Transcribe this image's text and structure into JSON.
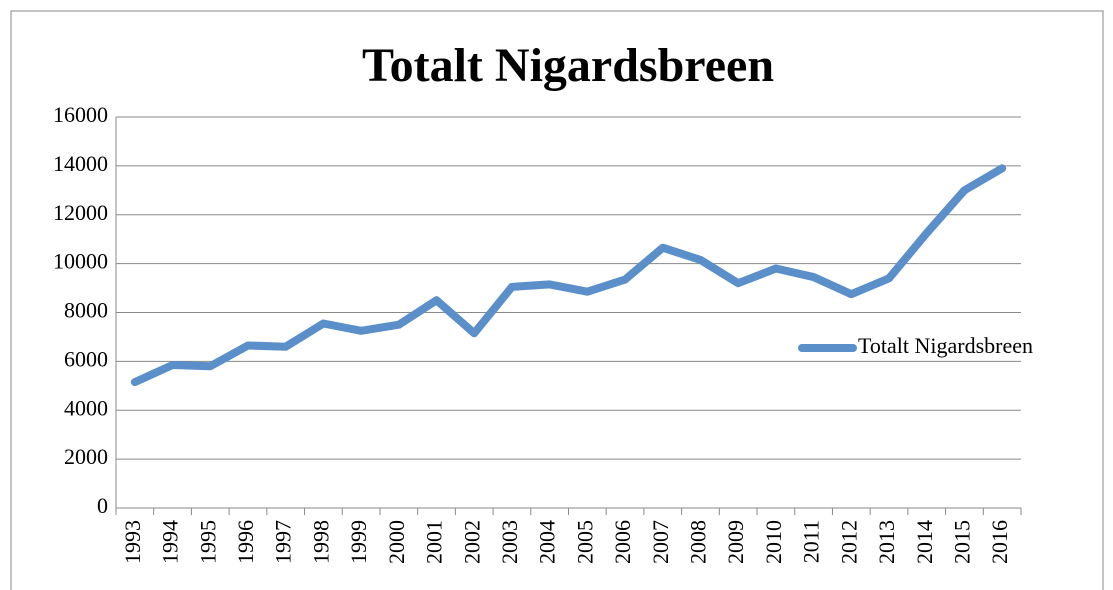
{
  "chart_data": {
    "type": "line",
    "title": "Totalt Nigardsbreen",
    "categories": [
      "1993",
      "1994",
      "1995",
      "1996",
      "1997",
      "1998",
      "1999",
      "2000",
      "2001",
      "2002",
      "2003",
      "2004",
      "2005",
      "2006",
      "2007",
      "2008",
      "2009",
      "2010",
      "2011",
      "2012",
      "2013",
      "2014",
      "2015",
      "2016"
    ],
    "series": [
      {
        "name": "Totalt Nigardsbreen",
        "color": "#5b8fc9",
        "values": [
          5150,
          5850,
          5800,
          6650,
          6600,
          7550,
          7250,
          7500,
          8500,
          7150,
          9050,
          9150,
          8850,
          9350,
          10650,
          10150,
          9200,
          9800,
          9450,
          8750,
          9400,
          11250,
          13000,
          13900
        ]
      }
    ],
    "ylim": [
      0,
      16000
    ],
    "yticks": [
      0,
      2000,
      4000,
      6000,
      8000,
      10000,
      12000,
      14000,
      16000
    ],
    "grid": true,
    "legend": "right"
  }
}
